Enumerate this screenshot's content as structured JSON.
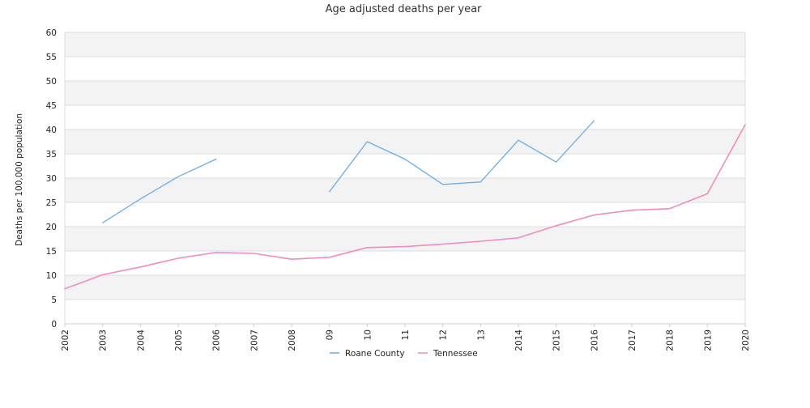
{
  "chart_data": {
    "type": "line",
    "title": "Age adjusted deaths per year",
    "xlabel": "",
    "ylabel": "Deaths per 100,000 population",
    "ylim": [
      0,
      60
    ],
    "yticks": [
      0,
      5,
      10,
      15,
      20,
      25,
      30,
      35,
      40,
      45,
      50,
      55,
      60
    ],
    "grid": "horizontal alternating bands",
    "legend_position": "bottom",
    "categories": [
      "2002",
      "2003",
      "2004",
      "2005",
      "2006",
      "2007",
      "2008",
      "09",
      "10",
      "11",
      "12",
      "13",
      "2014",
      "2015",
      "2016",
      "2017",
      "2018",
      "2019",
      "2020"
    ],
    "series": [
      {
        "name": "Roane County",
        "color": "#6aaee9",
        "values": [
          null,
          20.8,
          25.7,
          30.3,
          33.9,
          null,
          null,
          27.2,
          37.5,
          33.9,
          28.7,
          29.2,
          37.8,
          33.3,
          41.8,
          null,
          null,
          null,
          null
        ]
      },
      {
        "name": "Tennessee",
        "color": "#f08cbe",
        "values": [
          7.2,
          10.1,
          11.7,
          13.5,
          14.7,
          14.5,
          13.3,
          13.7,
          15.7,
          15.9,
          16.4,
          17.0,
          17.7,
          20.2,
          22.4,
          23.4,
          23.7,
          26.8,
          41.0
        ]
      }
    ]
  }
}
